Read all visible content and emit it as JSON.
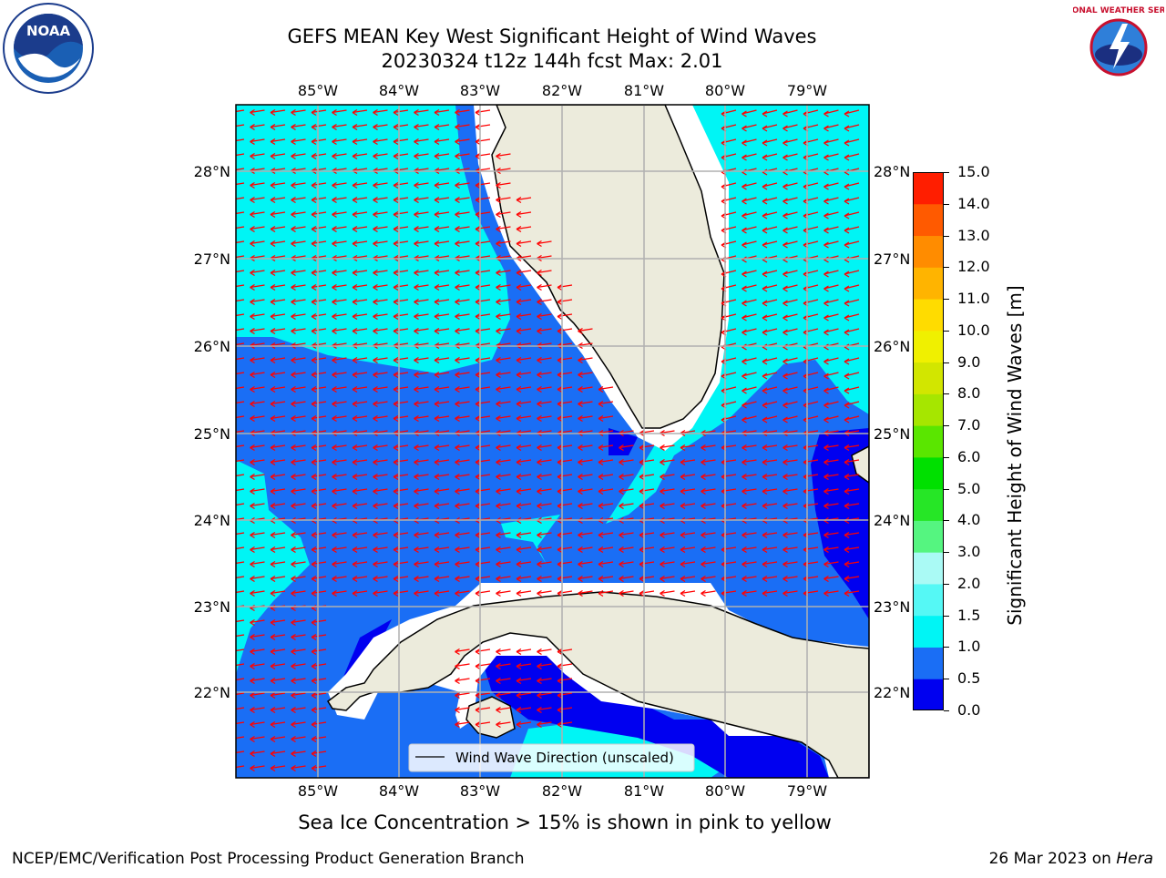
{
  "title_line1": "GEFS MEAN Key West Significant Height of Wind Waves",
  "title_line2": "20230324 t12z 144h fcst   Max: 2.01",
  "logos": {
    "left": "NOAA",
    "right": "NATIONAL WEATHER SERVICE"
  },
  "map": {
    "lon_labels": [
      "85°W",
      "84°W",
      "83°W",
      "82°W",
      "81°W",
      "80°W",
      "79°W"
    ],
    "lat_labels": [
      "28°N",
      "27°N",
      "26°N",
      "25°N",
      "24°N",
      "23°N",
      "22°N"
    ],
    "legend_text": "Wind Wave Direction (unscaled)",
    "colors": {
      "land": "#ecebdc",
      "deep_blue": "#0000f0",
      "medium_blue": "#1a6ef5",
      "cyan": "#00f5f5",
      "light_cyan": "#55f8f5",
      "arrow": "#ff0000",
      "grid": "#b0b0b0"
    }
  },
  "colorbar": {
    "label": "Significant Height of Wind Waves [m]",
    "ticks": [
      "0.0",
      "0.5",
      "1.0",
      "1.5",
      "2.0",
      "3.0",
      "4.0",
      "5.0",
      "6.0",
      "7.0",
      "8.0",
      "9.0",
      "10.0",
      "11.0",
      "12.0",
      "13.0",
      "14.0",
      "15.0"
    ],
    "colors": [
      "#0000f0",
      "#1a6ef5",
      "#00f5f5",
      "#55f8f5",
      "#aafaf5",
      "#55f580",
      "#26e626",
      "#00e000",
      "#5ae600",
      "#a6e600",
      "#d2e600",
      "#f0f000",
      "#ffdc00",
      "#ffb400",
      "#ff8c00",
      "#ff5a00",
      "#ff1e00"
    ]
  },
  "caption": "Sea Ice Concentration > 15% is shown in pink to yellow",
  "footer_left": "NCEP/EMC/Verification Post Processing Product Generation Branch",
  "footer_right_prefix": "26 Mar 2023 on ",
  "footer_right_host": "Hera"
}
